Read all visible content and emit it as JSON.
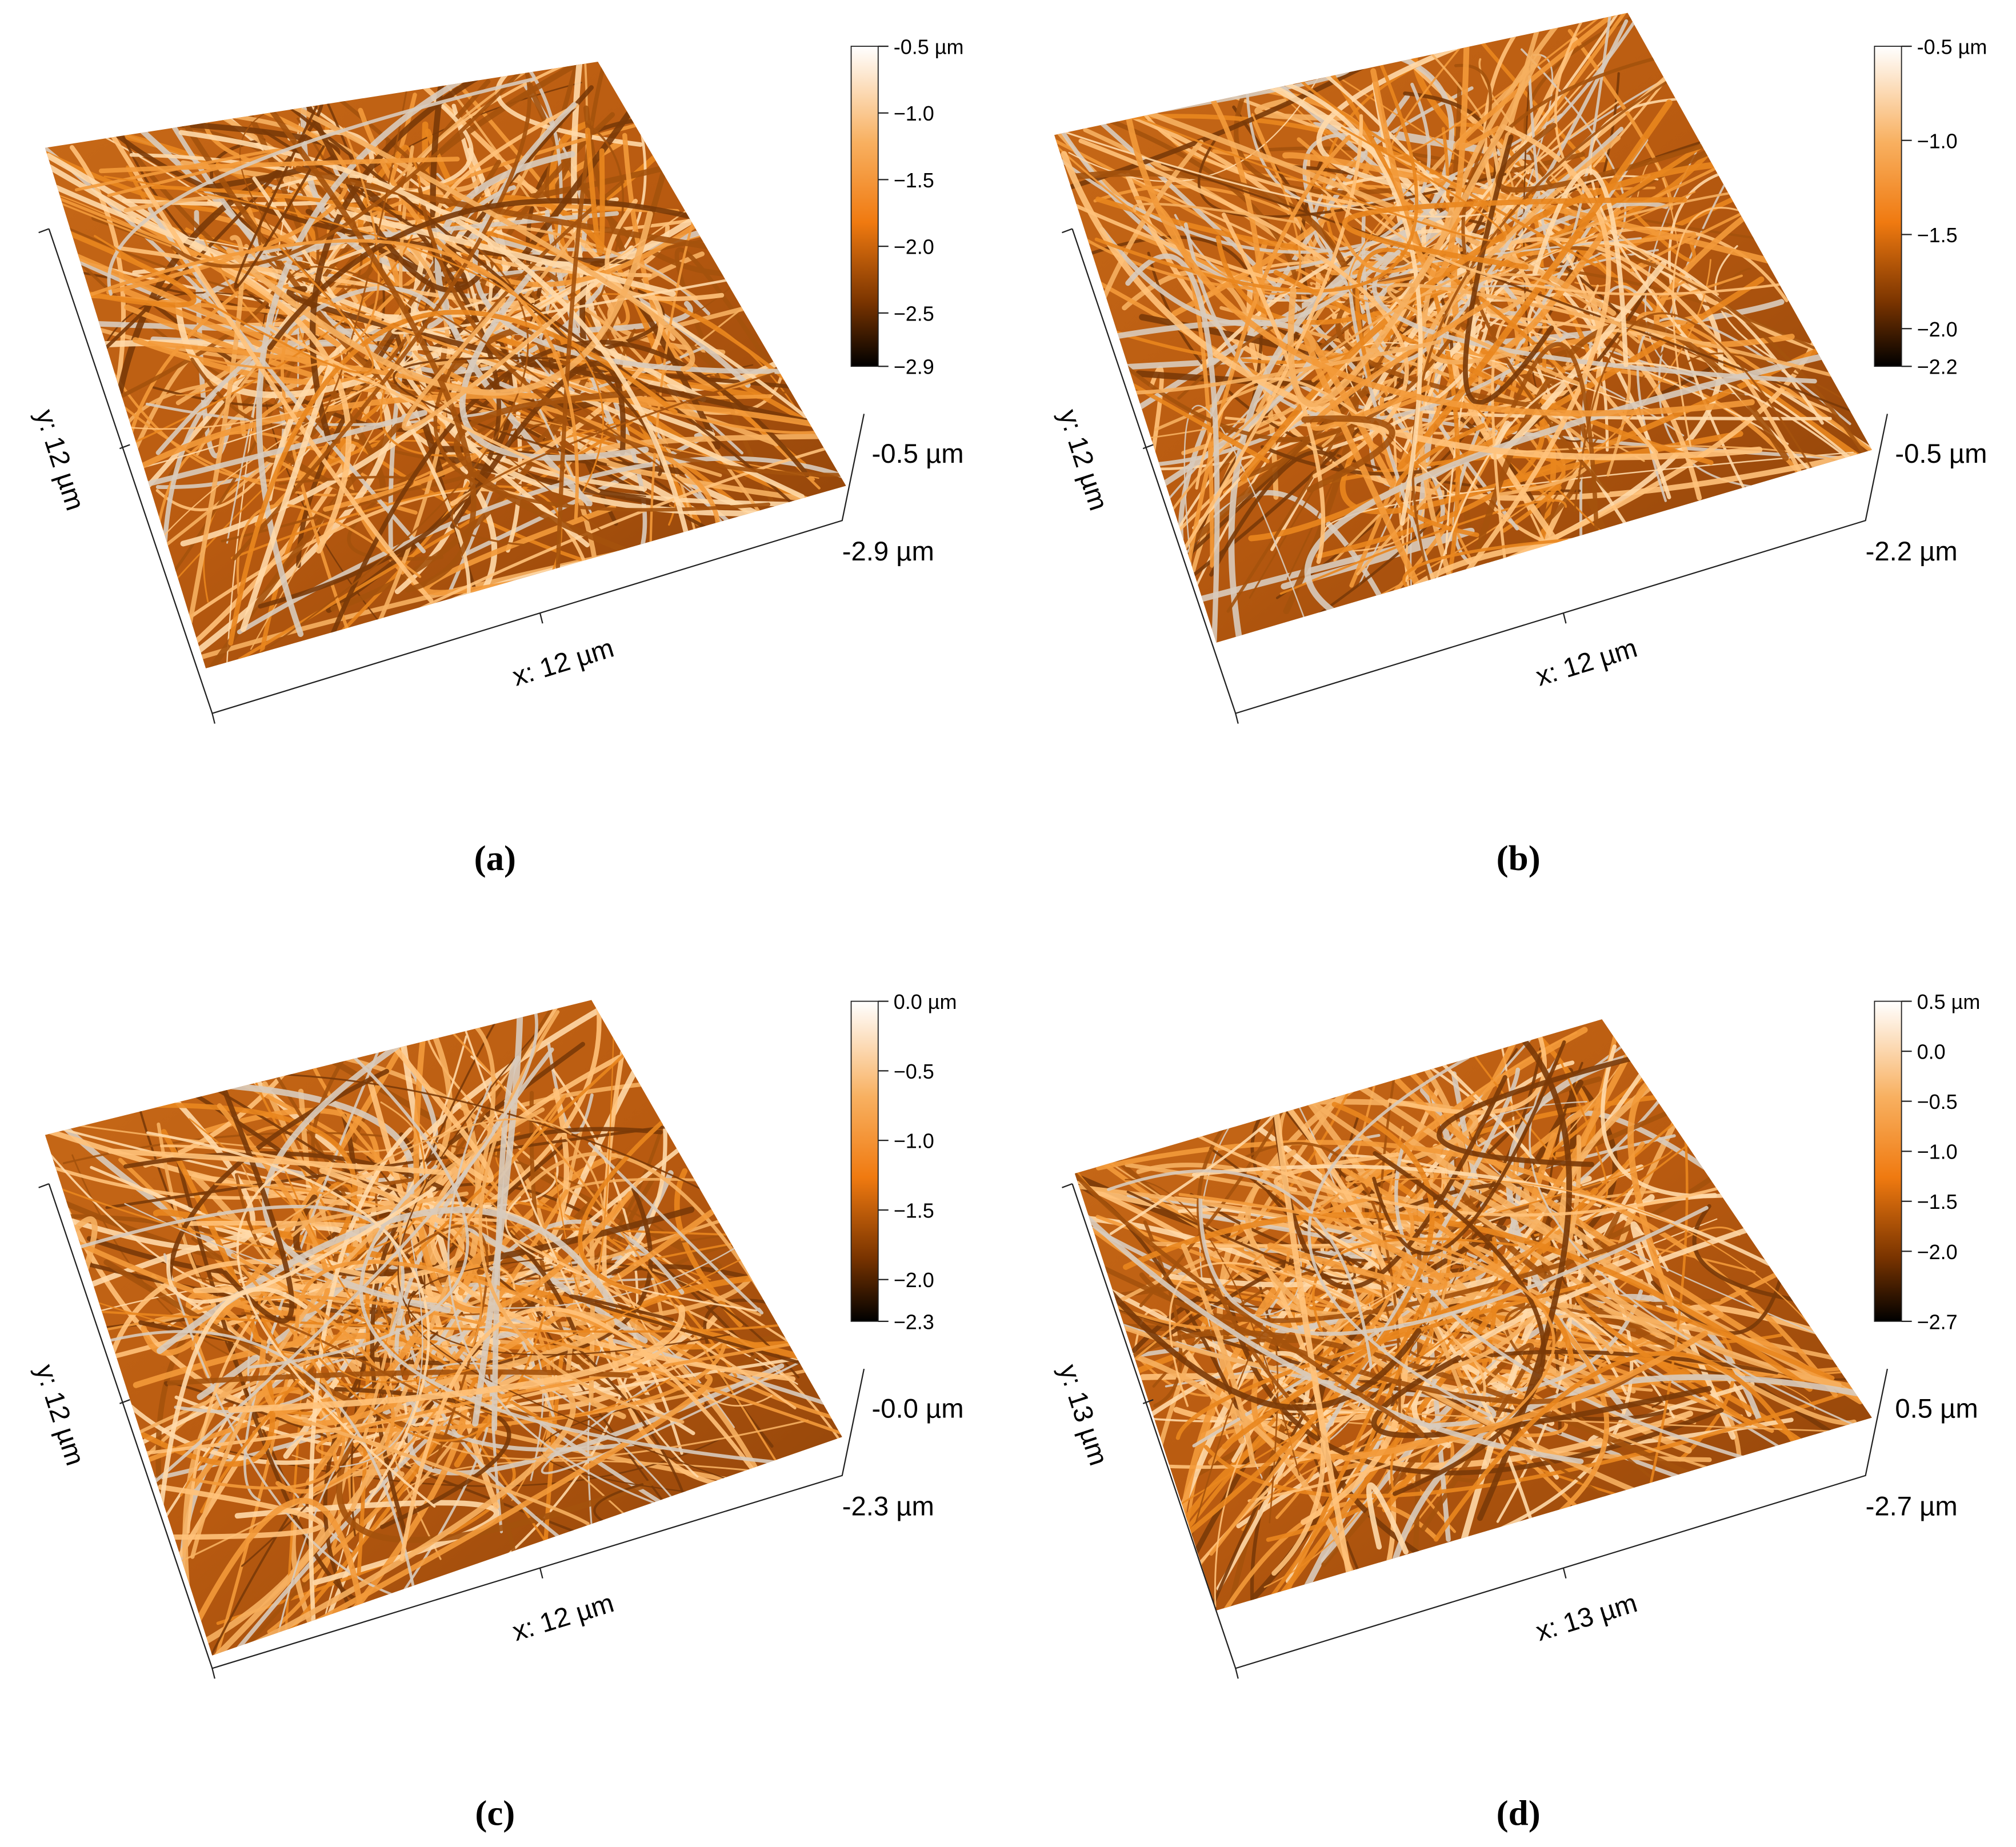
{
  "panels": [
    {
      "label": "(a)",
      "x_axis": "x: 12 µm",
      "y_axis": "y: 12 µm",
      "z_top": "-0.5 µm",
      "z_bottom": "-2.9 µm",
      "colorbar": {
        "lim": [
          -2.9,
          -0.5
        ],
        "ticks": [
          {
            "value": -0.5,
            "label": "-0.5 µm"
          },
          {
            "value": -1.0,
            "label": "−1.0"
          },
          {
            "value": -1.5,
            "label": "−1.5"
          },
          {
            "value": -2.0,
            "label": "−2.0"
          },
          {
            "value": -2.5,
            "label": "−2.5"
          },
          {
            "value": -2.9,
            "label": "−2.9"
          }
        ]
      }
    },
    {
      "label": "(b)",
      "x_axis": "x: 12 µm",
      "y_axis": "y: 12 µm",
      "z_top": "-0.5 µm",
      "z_bottom": "-2.2 µm",
      "colorbar": {
        "lim": [
          -2.2,
          -0.5
        ],
        "ticks": [
          {
            "value": -0.5,
            "label": "-0.5 µm"
          },
          {
            "value": -1.0,
            "label": "−1.0"
          },
          {
            "value": -1.5,
            "label": "−1.5"
          },
          {
            "value": -2.0,
            "label": "−2.0"
          },
          {
            "value": -2.2,
            "label": "−2.2"
          }
        ]
      }
    },
    {
      "label": "(c)",
      "x_axis": "x: 12 µm",
      "y_axis": "y: 12 µm",
      "z_top": "-0.0 µm",
      "z_bottom": "-2.3 µm",
      "colorbar": {
        "lim": [
          -2.3,
          0.0
        ],
        "ticks": [
          {
            "value": 0.0,
            "label": "0.0 µm"
          },
          {
            "value": -0.5,
            "label": "−0.5"
          },
          {
            "value": -1.0,
            "label": "−1.0"
          },
          {
            "value": -1.5,
            "label": "−1.5"
          },
          {
            "value": -2.0,
            "label": "−2.0"
          },
          {
            "value": -2.3,
            "label": "−2.3"
          }
        ]
      }
    },
    {
      "label": "(d)",
      "x_axis": "x: 13 µm",
      "y_axis": "y: 13 µm",
      "z_top": "0.5 µm",
      "z_bottom": "-2.7 µm",
      "colorbar": {
        "lim": [
          -2.7,
          0.5
        ],
        "ticks": [
          {
            "value": 0.5,
            "label": "0.5 µm"
          },
          {
            "value": 0.0,
            "label": "0.0"
          },
          {
            "value": -0.5,
            "label": "−0.5"
          },
          {
            "value": -1.0,
            "label": "−1.0"
          },
          {
            "value": -1.5,
            "label": "−1.5"
          },
          {
            "value": -2.0,
            "label": "−2.0"
          },
          {
            "value": -2.7,
            "label": "−2.7"
          }
        ]
      }
    }
  ]
}
